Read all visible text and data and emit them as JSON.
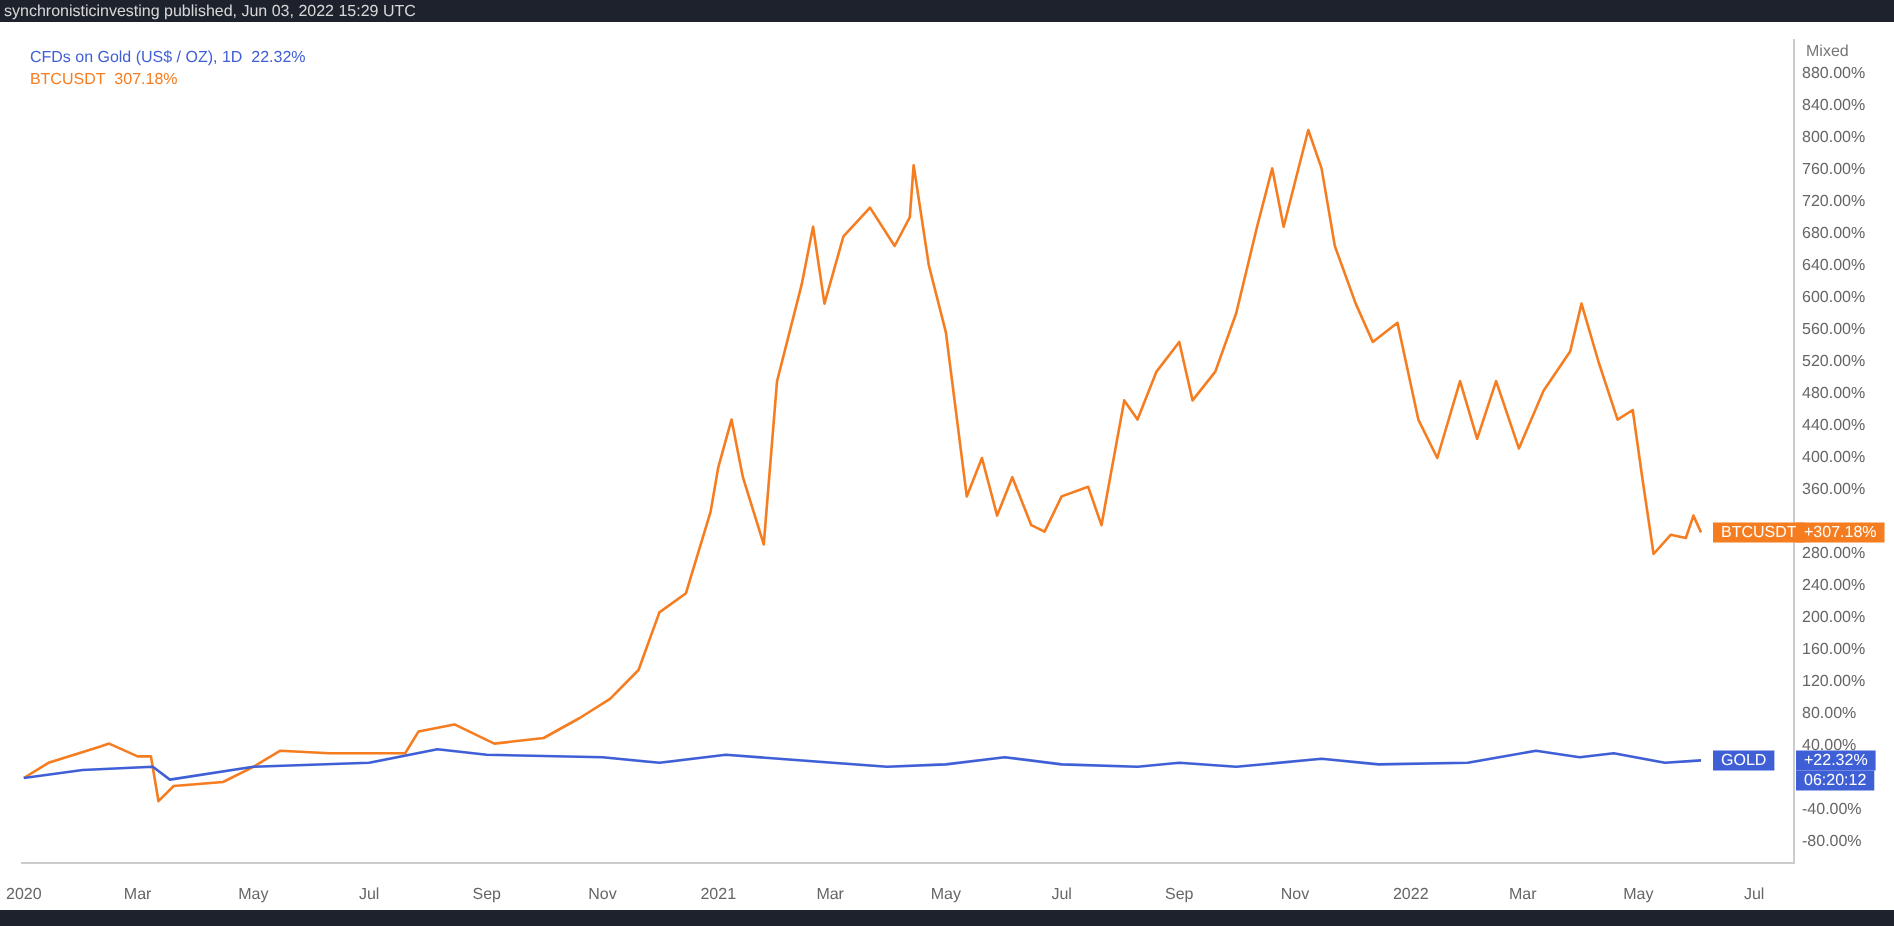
{
  "chart_data": {
    "type": "line",
    "title": "synchronisticinvesting published, Jun 03, 2022 15:29 UTC",
    "ylabel": "Mixed",
    "legend": "top left",
    "grid": false,
    "marker": "none",
    "line_style": "solid",
    "xlim": [
      "2019-12-31",
      "2022-07-22"
    ],
    "xticks": [
      {
        "value": "2020-01-01",
        "label": "2020"
      },
      {
        "value": "2020-03-01",
        "label": "Mar"
      },
      {
        "value": "2020-05-01",
        "label": "May"
      },
      {
        "value": "2020-07-01",
        "label": "Jul"
      },
      {
        "value": "2020-09-01",
        "label": "Sep"
      },
      {
        "value": "2020-11-01",
        "label": "Nov"
      },
      {
        "value": "2021-01-01",
        "label": "2021"
      },
      {
        "value": "2021-03-01",
        "label": "Mar"
      },
      {
        "value": "2021-05-01",
        "label": "May"
      },
      {
        "value": "2021-07-01",
        "label": "Jul"
      },
      {
        "value": "2021-09-01",
        "label": "Sep"
      },
      {
        "value": "2021-11-01",
        "label": "Nov"
      },
      {
        "value": "2022-01-01",
        "label": "2022"
      },
      {
        "value": "2022-03-01",
        "label": "Mar"
      },
      {
        "value": "2022-05-01",
        "label": "May"
      },
      {
        "value": "2022-07-01",
        "label": "Jul"
      }
    ],
    "ylim": [
      -106,
      923
    ],
    "yticks": [
      {
        "value": -80,
        "label": "-80.00%"
      },
      {
        "value": -40,
        "label": "-40.00%"
      },
      {
        "value": 40,
        "label": "40.00%"
      },
      {
        "value": 80,
        "label": "80.00%"
      },
      {
        "value": 120,
        "label": "120.00%"
      },
      {
        "value": 160,
        "label": "160.00%"
      },
      {
        "value": 200,
        "label": "200.00%"
      },
      {
        "value": 240,
        "label": "240.00%"
      },
      {
        "value": 280,
        "label": "280.00%"
      },
      {
        "value": 360,
        "label": "360.00%"
      },
      {
        "value": 400,
        "label": "400.00%"
      },
      {
        "value": 440,
        "label": "440.00%"
      },
      {
        "value": 480,
        "label": "480.00%"
      },
      {
        "value": 520,
        "label": "520.00%"
      },
      {
        "value": 560,
        "label": "560.00%"
      },
      {
        "value": 600,
        "label": "600.00%"
      },
      {
        "value": 640,
        "label": "640.00%"
      },
      {
        "value": 680,
        "label": "680.00%"
      },
      {
        "value": 720,
        "label": "720.00%"
      },
      {
        "value": 760,
        "label": "760.00%"
      },
      {
        "value": 800,
        "label": "800.00%"
      },
      {
        "value": 840,
        "label": "840.00%"
      },
      {
        "value": 880,
        "label": "880.00%"
      }
    ],
    "series": [
      {
        "name": "CFDs on Gold (US$ / OZ), 1D",
        "color": "#3f5fd6",
        "x": [
          "2020-01-01",
          "2020-02-01",
          "2020-03-09",
          "2020-03-18",
          "2020-05-01",
          "2020-07-01",
          "2020-08-06",
          "2020-09-01",
          "2020-11-01",
          "2020-12-01",
          "2021-01-05",
          "2021-03-31",
          "2021-05-01",
          "2021-06-01",
          "2021-07-01",
          "2021-08-10",
          "2021-09-01",
          "2021-10-01",
          "2021-11-15",
          "2021-12-15",
          "2022-01-31",
          "2022-03-08",
          "2022-03-31",
          "2022-04-18",
          "2022-05-15",
          "2022-06-03"
        ],
        "values": [
          0,
          10,
          14,
          -2,
          14,
          19,
          36,
          29,
          26,
          19,
          29,
          14,
          17,
          26,
          17,
          14,
          19,
          14,
          24,
          17,
          19,
          34,
          26,
          31,
          19,
          22
        ]
      },
      {
        "name": "BTCUSDT",
        "color": "#f57c1f",
        "x": [
          "2020-01-01",
          "2020-01-14",
          "2020-02-10",
          "2020-02-15",
          "2020-03-01",
          "2020-03-08",
          "2020-03-12",
          "2020-03-20",
          "2020-04-15",
          "2020-05-01",
          "2020-05-15",
          "2020-06-10",
          "2020-07-01",
          "2020-07-20",
          "2020-07-27",
          "2020-08-15",
          "2020-09-05",
          "2020-10-01",
          "2020-10-20",
          "2020-11-05",
          "2020-11-20",
          "2020-12-01",
          "2020-12-15",
          "2020-12-28",
          "2021-01-01",
          "2021-01-08",
          "2021-01-14",
          "2021-01-25",
          "2021-02-01",
          "2021-02-14",
          "2021-02-20",
          "2021-02-26",
          "2021-03-08",
          "2021-03-22",
          "2021-04-04",
          "2021-04-12",
          "2021-04-14",
          "2021-04-22",
          "2021-05-01",
          "2021-05-12",
          "2021-05-20",
          "2021-05-28",
          "2021-06-05",
          "2021-06-15",
          "2021-06-22",
          "2021-07-01",
          "2021-07-15",
          "2021-07-22",
          "2021-08-03",
          "2021-08-10",
          "2021-08-20",
          "2021-09-01",
          "2021-09-08",
          "2021-09-20",
          "2021-10-01",
          "2021-10-12",
          "2021-10-20",
          "2021-10-26",
          "2021-11-08",
          "2021-11-15",
          "2021-11-22",
          "2021-12-03",
          "2021-12-12",
          "2021-12-25",
          "2022-01-05",
          "2022-01-15",
          "2022-01-27",
          "2022-02-05",
          "2022-02-15",
          "2022-02-27",
          "2022-03-12",
          "2022-03-26",
          "2022-04-01",
          "2022-04-10",
          "2022-04-20",
          "2022-04-28",
          "2022-05-03",
          "2022-05-09",
          "2022-05-18",
          "2022-05-26",
          "2022-05-30",
          "2022-06-03"
        ],
        "values": [
          0,
          19,
          39,
          43,
          27,
          27,
          -29,
          -10,
          -5,
          14,
          34,
          31,
          31,
          31,
          58,
          67,
          43,
          50,
          75,
          99,
          135,
          207,
          231,
          333,
          388,
          448,
          376,
          292,
          496,
          617,
          689,
          593,
          677,
          713,
          665,
          701,
          766,
          641,
          557,
          352,
          400,
          328,
          376,
          316,
          308,
          352,
          364,
          316,
          472,
          448,
          508,
          545,
          472,
          508,
          581,
          689,
          762,
          689,
          810,
          762,
          665,
          593,
          545,
          569,
          448,
          400,
          496,
          424,
          496,
          412,
          484,
          533,
          593,
          520,
          448,
          460,
          376,
          280,
          304,
          300,
          328,
          307
        ]
      }
    ],
    "annotations": [
      "22.32%",
      "307.18%",
      {
        "text": "BTCUSDT",
        "x": "2022-06-03",
        "y": 307
      },
      "+307.18%",
      {
        "text": "GOLD",
        "x": "2022-06-03",
        "y": 22
      },
      "+22.32%",
      "06:20:12"
    ]
  }
}
